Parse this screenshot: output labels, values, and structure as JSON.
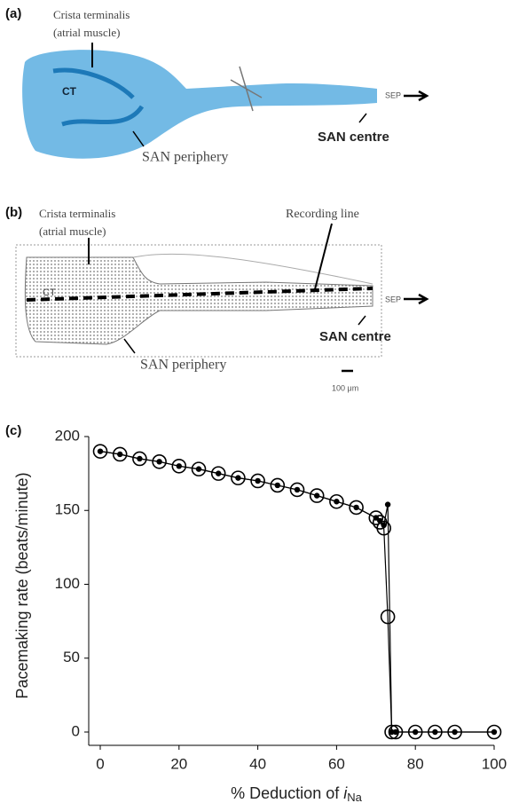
{
  "panel_a": {
    "label": "(a)",
    "ct_name": "Crista terminalis",
    "ct_sub": "(atrial muscle)",
    "ct": "CT",
    "sep": "SEP",
    "san_centre": "SAN centre",
    "san_periphery": "SAN periphery"
  },
  "panel_b": {
    "label": "(b)",
    "ct_name": "Crista terminalis",
    "ct_sub": "(atrial muscle)",
    "recording": "Recording line",
    "ct": "CT",
    "sep": "SEP",
    "san_centre": "SAN centre",
    "san_periphery": "SAN periphery",
    "scale": "100 μm"
  },
  "chart_data": {
    "type": "line",
    "panel_label": "(c)",
    "ylabel": "Pacemaking rate (beats/minute)",
    "xlabel": "% Deduction of ",
    "xlabel_var": "i",
    "xlabel_sub": "Na",
    "x": [
      0,
      5,
      10,
      15,
      20,
      25,
      30,
      35,
      40,
      45,
      50,
      55,
      60,
      65,
      70,
      71,
      72,
      73,
      74,
      75,
      80,
      85,
      90,
      100
    ],
    "series": [
      {
        "marker": "open",
        "color": "#000000",
        "values": [
          190,
          188,
          185,
          183,
          180,
          178,
          175,
          172,
          170,
          167,
          164,
          160,
          156,
          152,
          145,
          142,
          138,
          78,
          0,
          0,
          0,
          0,
          0,
          0
        ]
      },
      {
        "marker": "filled",
        "color": "#000000",
        "values": [
          190,
          188,
          185,
          183,
          180,
          178,
          175,
          172,
          170,
          167,
          164,
          160,
          156,
          152,
          145,
          143,
          140,
          154,
          0,
          0,
          0,
          0,
          0,
          0
        ]
      }
    ],
    "xlim": [
      0,
      100
    ],
    "xticks": [
      0,
      20,
      40,
      60,
      80,
      100
    ],
    "ylim": [
      0,
      200
    ],
    "yticks": [
      0,
      50,
      100,
      150,
      200
    ]
  }
}
